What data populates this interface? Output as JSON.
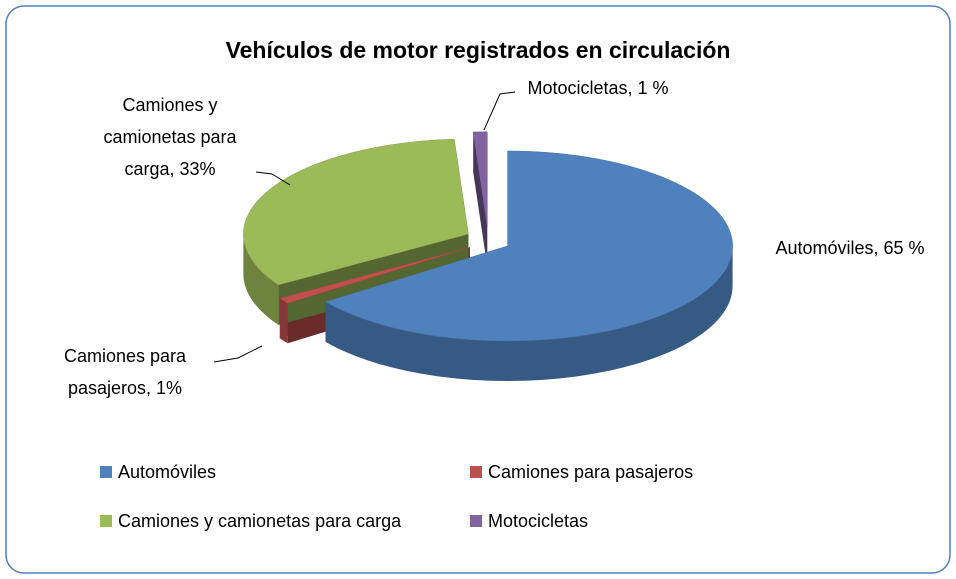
{
  "chart_data": {
    "type": "pie",
    "title": "Vehículos de motor registrados en circulación",
    "categories": [
      "Automóviles",
      "Camiones para pasajeros",
      "Camiones y camionetas para carga",
      "Motocicletas"
    ],
    "values": [
      65,
      1,
      33,
      1
    ],
    "value_labels": [
      "Automóviles, 65 %",
      "Camiones para pasajeros, 1%",
      "Camiones y camionetas para carga, 33%",
      "Motocicletas, 1 %"
    ],
    "colors": [
      "#4f81bd",
      "#c0504d",
      "#9bbb59",
      "#8064a2"
    ],
    "legend": "bottom"
  }
}
